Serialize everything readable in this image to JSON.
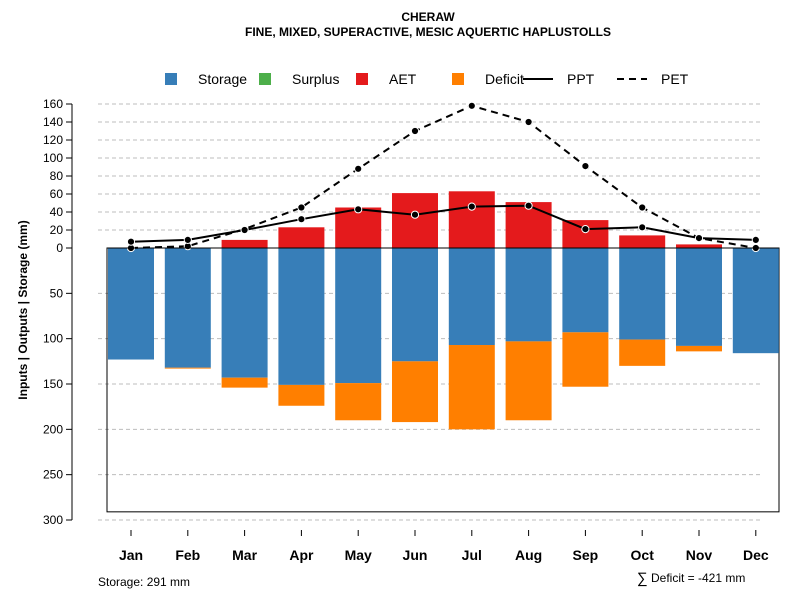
{
  "chart_data": {
    "type": "bar",
    "title": "CHERAW",
    "subtitle": "FINE, MIXED, SUPERACTIVE, MESIC AQUERTIC HAPLUSTOLLS",
    "ylabel": "Inputs | Outputs | Storage     (mm)",
    "categories": [
      "Jan",
      "Feb",
      "Mar",
      "Apr",
      "May",
      "Jun",
      "Jul",
      "Aug",
      "Sep",
      "Oct",
      "Nov",
      "Dec"
    ],
    "upper_axis": {
      "ticks": [
        0,
        20,
        40,
        60,
        80,
        100,
        120,
        140,
        160
      ],
      "range": [
        0,
        160
      ]
    },
    "lower_axis": {
      "ticks": [
        50,
        100,
        150,
        200,
        250,
        300
      ],
      "range": [
        0,
        300
      ]
    },
    "legend": [
      {
        "label": "Storage",
        "kind": "square",
        "color": "#377EB8"
      },
      {
        "label": "Surplus",
        "kind": "square",
        "color": "#4DAF4A"
      },
      {
        "label": "AET",
        "kind": "square",
        "color": "#E41A1C"
      },
      {
        "label": "Deficit",
        "kind": "square",
        "color": "#FF7F00"
      },
      {
        "label": "PPT",
        "kind": "solid-line",
        "color": "#000000"
      },
      {
        "label": "PET",
        "kind": "dashed-line",
        "color": "#000000"
      }
    ],
    "series": [
      {
        "name": "AET",
        "color": "#E41A1C",
        "values": [
          0,
          0,
          9,
          23,
          45,
          61,
          63,
          51,
          31,
          14,
          4,
          0
        ]
      },
      {
        "name": "PPT",
        "color": "#000000",
        "values": [
          7,
          9,
          20,
          32,
          43,
          37,
          46,
          47,
          21,
          23,
          11,
          9
        ]
      },
      {
        "name": "PET",
        "color": "#000000",
        "values": [
          0,
          2,
          21,
          45,
          88,
          130,
          158,
          140,
          91,
          45,
          11,
          0
        ]
      },
      {
        "name": "Storage",
        "color": "#377EB8",
        "values": [
          123,
          132,
          143,
          151,
          149,
          125,
          107,
          103,
          93,
          101,
          108,
          116
        ]
      },
      {
        "name": "Deficit",
        "color": "#FF7F00",
        "values": [
          0,
          1,
          11,
          23,
          41,
          67,
          93,
          87,
          60,
          29,
          6,
          0
        ]
      }
    ],
    "storage_capacity": 291,
    "storage_label": "Storage: 291 mm",
    "deficit_label": "Deficit = -421 mm",
    "sum_symbol": "∑"
  }
}
